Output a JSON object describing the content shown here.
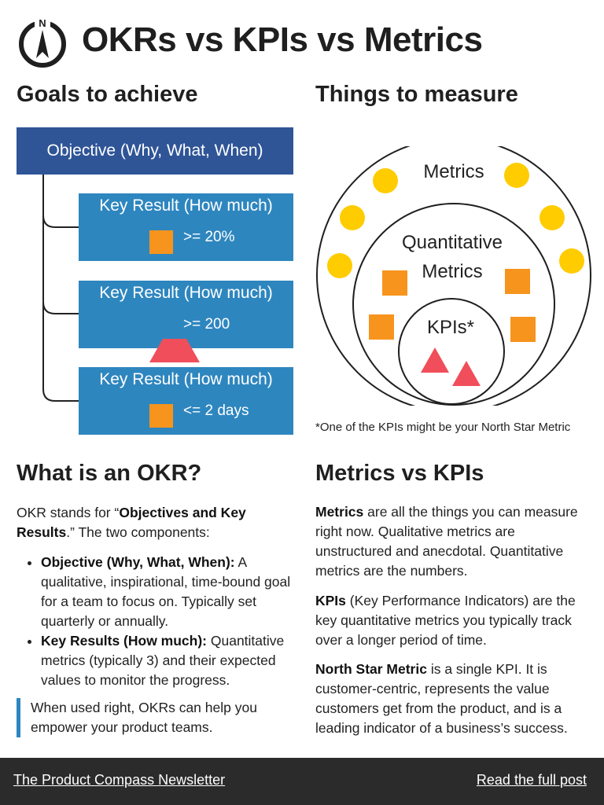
{
  "header": {
    "title": "OKRs vs KPIs vs Metrics",
    "logo_letter": "N",
    "logo_icon": "compass-icon"
  },
  "left_section": {
    "heading": "Goals to achieve",
    "objective_label": "Objective (Why, What, When)",
    "key_results": [
      {
        "label": "Key Result (How much)",
        "shape": "square",
        "value": ">= 20%"
      },
      {
        "label": "Key Result (How much)",
        "shape": "triangle",
        "value": ">= 200"
      },
      {
        "label": "Key Result (How much)",
        "shape": "square",
        "value": "<= 2 days"
      }
    ]
  },
  "right_section": {
    "heading": "Things to measure",
    "venn": {
      "outer_label": "Metrics",
      "middle_label_line1": "Quantitative",
      "middle_label_line2": "Metrics",
      "inner_label": "KPIs*"
    },
    "footnote": "*One of the KPIs might be your North Star Metric"
  },
  "okr_section": {
    "heading": "What is an OKR?",
    "intro_pre": "OKR stands for “",
    "intro_bold": "Objectives and Key Results",
    "intro_post": ".” The two components:",
    "bullets": [
      {
        "term": "Objective (Why, What, When):",
        "text": " A qualitative, inspirational, time-bound goal for a team to focus on. Typically set quarterly or annually."
      },
      {
        "term": "Key Results (How much):",
        "text": " Quantitative metrics (typically 3) and their expected values to monitor the progress."
      }
    ],
    "quote": "When used right, OKRs can help you empower your product teams."
  },
  "metrics_section": {
    "heading": "Metrics vs KPIs",
    "paragraphs": [
      {
        "term": "Metrics",
        "text": " are all the things you can measure right now. Qualitative metrics are unstructured and anecdotal. Quantitative metrics are the numbers."
      },
      {
        "term": "KPIs",
        "text": " (Key Performance Indicators) are the key quantitative metrics you typically track over a longer period of time."
      },
      {
        "term": "North Star Metric",
        "text": " is a single KPI. It is customer-centric, represents the value customers get from the product, and is a leading indicator of a business’s success."
      }
    ]
  },
  "footer": {
    "left_link": "The Product Compass Newsletter",
    "right_link": "Read the full post"
  },
  "colors": {
    "objective_bg": "#2f5597",
    "key_result_bg": "#2e86bf",
    "square": "#f7941d",
    "triangle": "#f04e5a",
    "circle_dot": "#ffcc00",
    "footer_bg": "#2b2b2b"
  }
}
